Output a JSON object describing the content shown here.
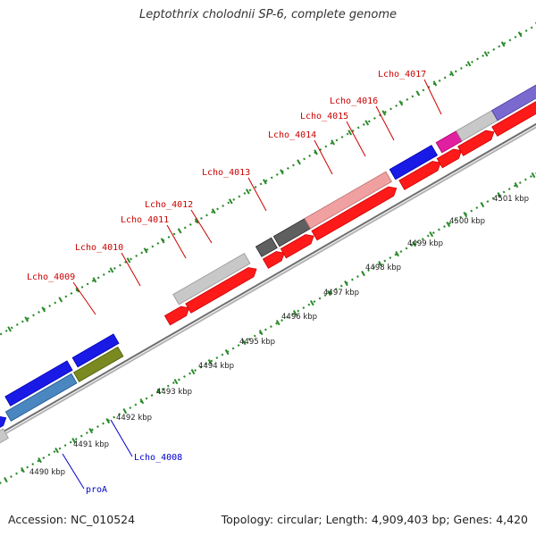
{
  "title": "Leptothrix cholodnii SP-6, complete genome",
  "accession": "Accession: NC_010524",
  "topology": "Topology: circular; Length: 4,909,403 bp; Genes: 4,420",
  "colors": {
    "backbone": "#8c8c8c",
    "cds": "#ff1a1a",
    "blue_feature": "#1a1ae6",
    "light_grey": "#c8c8c8",
    "dark_grey": "#5f5f5f",
    "pink": "#f0a0a0",
    "magenta": "#e020a0",
    "purple": "#7a6ad0",
    "steel_blue": "#4a86c0",
    "olive": "#7a8a20",
    "khaki": "#b8b070",
    "tick": "#2a8a2a",
    "label_red": "#cc0000",
    "label_blue": "#0000cc"
  },
  "tick_labels": [
    "4490 kbp",
    "4491 kbp",
    "4492 kbp",
    "4493 kbp",
    "4494 kbp",
    "4495 kbp",
    "4496 kbp",
    "4497 kbp",
    "4498 kbp",
    "4499 kbp",
    "4500 kbp",
    "4501 kbp"
  ],
  "gene_labels": [
    {
      "text": "Lcho_4009",
      "color": "red"
    },
    {
      "text": "Lcho_4010",
      "color": "red"
    },
    {
      "text": "Lcho_4011",
      "color": "red"
    },
    {
      "text": "Lcho_4012",
      "color": "red"
    },
    {
      "text": "Lcho_4013",
      "color": "red"
    },
    {
      "text": "Lcho_4014",
      "color": "red"
    },
    {
      "text": "Lcho_4015",
      "color": "red"
    },
    {
      "text": "Lcho_4016",
      "color": "red"
    },
    {
      "text": "Lcho_4017",
      "color": "red"
    },
    {
      "text": "Lcho_4008",
      "color": "blue"
    },
    {
      "text": "proA",
      "color": "blue"
    }
  ]
}
